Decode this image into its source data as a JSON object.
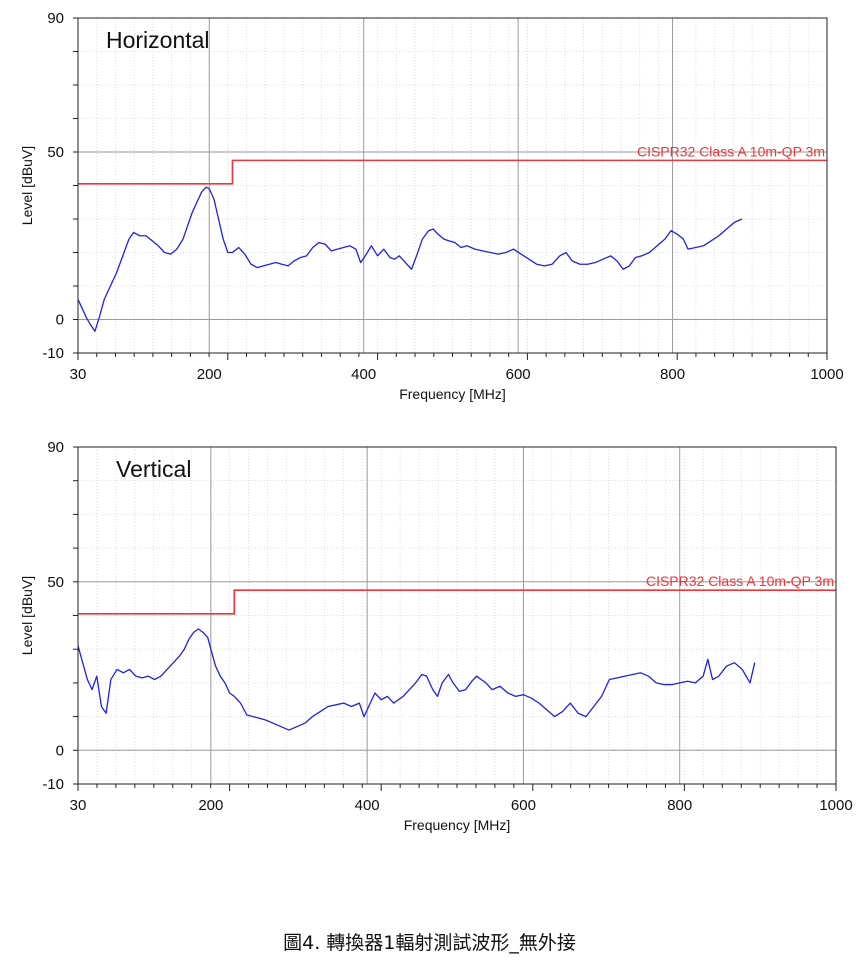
{
  "caption": "圖4. 轉換器1輻射測試波形_無外接",
  "chart_data": [
    {
      "type": "line",
      "title": "Horizontal",
      "xlabel": "Frequency [MHz]",
      "ylabel": "Level [dBuV]",
      "xlim": [
        30,
        1000
      ],
      "ylim": [
        -10,
        90
      ],
      "x_ticks": [
        30,
        200,
        400,
        600,
        800,
        1000
      ],
      "y_ticks": [
        -10,
        0,
        50,
        90
      ],
      "grid": true,
      "limit_line": {
        "name": "CISPR32 Class A 10m-QP 3m",
        "color": "#e8383c",
        "points": [
          [
            30,
            40.5
          ],
          [
            230,
            40.5
          ],
          [
            230,
            47.5
          ],
          [
            1000,
            47.5
          ]
        ]
      },
      "series": [
        {
          "color": "#2222dd",
          "points": [
            [
              30,
              6
            ],
            [
              36,
              3
            ],
            [
              41,
              0.5
            ],
            [
              46,
              -1.5
            ],
            [
              52,
              -3.5
            ],
            [
              58,
              1
            ],
            [
              64,
              6
            ],
            [
              72,
              10
            ],
            [
              80,
              14
            ],
            [
              88,
              19
            ],
            [
              96,
              24
            ],
            [
              102,
              26
            ],
            [
              110,
              25
            ],
            [
              118,
              25
            ],
            [
              126,
              23.5
            ],
            [
              134,
              22
            ],
            [
              142,
              20
            ],
            [
              150,
              19.5
            ],
            [
              158,
              21
            ],
            [
              166,
              24
            ],
            [
              172,
              28
            ],
            [
              178,
              32
            ],
            [
              184,
              35
            ],
            [
              190,
              38
            ],
            [
              196,
              39.5
            ],
            [
              200,
              39
            ],
            [
              206,
              36
            ],
            [
              212,
              30
            ],
            [
              218,
              24
            ],
            [
              224,
              20
            ],
            [
              230,
              20
            ],
            [
              238,
              21.5
            ],
            [
              246,
              19.5
            ],
            [
              254,
              16.5
            ],
            [
              262,
              15.5
            ],
            [
              270,
              16
            ],
            [
              278,
              16.5
            ],
            [
              286,
              17
            ],
            [
              294,
              16.5
            ],
            [
              302,
              16
            ],
            [
              310,
              17.5
            ],
            [
              318,
              18.5
            ],
            [
              326,
              19
            ],
            [
              334,
              21.5
            ],
            [
              342,
              23
            ],
            [
              350,
              22.5
            ],
            [
              358,
              20.5
            ],
            [
              366,
              21
            ],
            [
              374,
              21.5
            ],
            [
              382,
              22
            ],
            [
              390,
              21
            ],
            [
              396,
              17
            ],
            [
              402,
              19
            ],
            [
              410,
              22
            ],
            [
              418,
              19
            ],
            [
              426,
              21
            ],
            [
              434,
              18.5
            ],
            [
              440,
              18
            ],
            [
              446,
              19
            ],
            [
              454,
              17
            ],
            [
              462,
              15
            ],
            [
              470,
              20
            ],
            [
              476,
              24
            ],
            [
              484,
              26.5
            ],
            [
              490,
              27
            ],
            [
              496,
              25.5
            ],
            [
              504,
              24
            ],
            [
              510,
              23.5
            ],
            [
              518,
              23
            ],
            [
              526,
              21.5
            ],
            [
              534,
              22
            ],
            [
              544,
              21
            ],
            [
              554,
              20.5
            ],
            [
              564,
              20
            ],
            [
              574,
              19.5
            ],
            [
              584,
              20
            ],
            [
              594,
              21
            ],
            [
              604,
              19.5
            ],
            [
              614,
              18
            ],
            [
              624,
              16.5
            ],
            [
              634,
              16
            ],
            [
              644,
              16.5
            ],
            [
              654,
              19
            ],
            [
              662,
              20
            ],
            [
              670,
              17.5
            ],
            [
              680,
              16.5
            ],
            [
              690,
              16.5
            ],
            [
              700,
              17
            ],
            [
              710,
              18
            ],
            [
              720,
              19
            ],
            [
              728,
              17.5
            ],
            [
              736,
              15
            ],
            [
              744,
              16
            ],
            [
              752,
              18.5
            ],
            [
              760,
              19
            ],
            [
              770,
              20
            ],
            [
              780,
              22
            ],
            [
              790,
              24
            ],
            [
              798,
              26.5
            ],
            [
              806,
              25.5
            ],
            [
              814,
              24
            ],
            [
              820,
              21
            ],
            [
              830,
              21.5
            ],
            [
              840,
              22
            ],
            [
              850,
              23.5
            ],
            [
              860,
              25
            ],
            [
              870,
              27
            ],
            [
              880,
              29
            ],
            [
              890,
              30
            ]
          ]
        }
      ]
    },
    {
      "type": "line",
      "title": "Vertical",
      "xlabel": "Frequency [MHz]",
      "ylabel": "Level [dBuV]",
      "xlim": [
        30,
        1000
      ],
      "ylim": [
        -10,
        90
      ],
      "x_ticks": [
        30,
        200,
        400,
        600,
        800,
        1000
      ],
      "y_ticks": [
        -10,
        0,
        50,
        90
      ],
      "grid": true,
      "limit_line": {
        "name": "CISPR32 Class A 10m-QP 3m",
        "color": "#e8383c",
        "points": [
          [
            30,
            40.5
          ],
          [
            230,
            40.5
          ],
          [
            230,
            47.5
          ],
          [
            1000,
            47.5
          ]
        ]
      },
      "series": [
        {
          "color": "#2222dd",
          "points": [
            [
              30,
              31
            ],
            [
              36,
              26
            ],
            [
              42,
              21
            ],
            [
              48,
              18
            ],
            [
              54,
              22
            ],
            [
              60,
              13
            ],
            [
              66,
              11
            ],
            [
              72,
              21
            ],
            [
              80,
              24
            ],
            [
              88,
              23
            ],
            [
              96,
              24
            ],
            [
              104,
              22
            ],
            [
              112,
              21.5
            ],
            [
              120,
              22
            ],
            [
              128,
              21
            ],
            [
              136,
              22
            ],
            [
              144,
              24
            ],
            [
              152,
              26
            ],
            [
              160,
              28
            ],
            [
              166,
              30
            ],
            [
              172,
              33
            ],
            [
              178,
              35
            ],
            [
              184,
              36
            ],
            [
              190,
              35
            ],
            [
              196,
              33.5
            ],
            [
              200,
              30
            ],
            [
              206,
              25
            ],
            [
              212,
              22
            ],
            [
              218,
              20
            ],
            [
              224,
              17
            ],
            [
              230,
              16
            ],
            [
              238,
              14
            ],
            [
              246,
              10.5
            ],
            [
              254,
              10
            ],
            [
              262,
              9.5
            ],
            [
              270,
              9
            ],
            [
              280,
              8
            ],
            [
              290,
              7
            ],
            [
              300,
              6
            ],
            [
              310,
              7
            ],
            [
              320,
              8
            ],
            [
              330,
              10
            ],
            [
              340,
              11.5
            ],
            [
              350,
              13
            ],
            [
              360,
              13.5
            ],
            [
              370,
              14
            ],
            [
              380,
              13
            ],
            [
              390,
              14
            ],
            [
              396,
              10
            ],
            [
              402,
              13
            ],
            [
              410,
              17
            ],
            [
              418,
              15
            ],
            [
              426,
              16
            ],
            [
              434,
              14
            ],
            [
              440,
              15
            ],
            [
              446,
              16
            ],
            [
              454,
              18
            ],
            [
              462,
              20
            ],
            [
              470,
              22.5
            ],
            [
              476,
              22
            ],
            [
              484,
              18
            ],
            [
              490,
              16
            ],
            [
              496,
              20
            ],
            [
              504,
              22.5
            ],
            [
              510,
              20
            ],
            [
              518,
              17.5
            ],
            [
              526,
              18
            ],
            [
              534,
              20.5
            ],
            [
              540,
              22
            ],
            [
              546,
              21
            ],
            [
              552,
              20
            ],
            [
              560,
              18
            ],
            [
              570,
              19
            ],
            [
              580,
              17
            ],
            [
              590,
              16
            ],
            [
              600,
              16.5
            ],
            [
              610,
              15.5
            ],
            [
              620,
              14
            ],
            [
              630,
              12
            ],
            [
              640,
              10
            ],
            [
              650,
              11.5
            ],
            [
              660,
              14
            ],
            [
              670,
              11
            ],
            [
              680,
              10
            ],
            [
              690,
              13
            ],
            [
              700,
              16
            ],
            [
              710,
              21
            ],
            [
              720,
              21.5
            ],
            [
              730,
              22
            ],
            [
              740,
              22.5
            ],
            [
              750,
              23
            ],
            [
              760,
              22
            ],
            [
              770,
              20
            ],
            [
              780,
              19.5
            ],
            [
              790,
              19.5
            ],
            [
              800,
              20
            ],
            [
              810,
              20.5
            ],
            [
              820,
              20
            ],
            [
              830,
              22
            ],
            [
              836,
              27
            ],
            [
              842,
              21
            ],
            [
              850,
              22
            ],
            [
              860,
              25
            ],
            [
              870,
              26
            ],
            [
              880,
              24
            ],
            [
              890,
              20
            ],
            [
              896,
              26
            ]
          ]
        }
      ]
    }
  ]
}
